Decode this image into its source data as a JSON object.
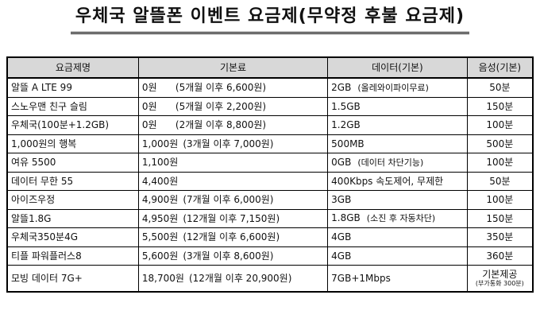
{
  "title": "우체국 알뜰폰 이벤트 요금제(무약정 후불 요금제)",
  "table": {
    "headers": [
      "요금제명",
      "기본료",
      "데이터(기본)",
      "음성(기본)"
    ],
    "rows": [
      {
        "name": "알뜰 A LTE 99",
        "fee": "0원",
        "fee_note": "(5개월 이후 6,600원)",
        "data": "2GB",
        "data_note": "(올레와이파이무료)",
        "voice": "50분"
      },
      {
        "name": "스노우맨 친구 슬림",
        "fee": "0원",
        "fee_note": "(5개월 이후 2,200원)",
        "data": "1.5GB",
        "data_note": "",
        "voice": "150분"
      },
      {
        "name": "우체국(100분+1.2GB)",
        "fee": "0원",
        "fee_note": "(2개월 이후 8,800원)",
        "data": "1.2GB",
        "data_note": "",
        "voice": "100분"
      },
      {
        "name": "1,000원의 행복",
        "fee": "1,000원",
        "fee_note": "(3개월 이후 7,000원)",
        "data": "500MB",
        "data_note": "",
        "voice": "500분"
      },
      {
        "name": "여유 5500",
        "fee": "1,100원",
        "fee_note": "",
        "data": "0GB",
        "data_note": "(데이터 차단기능)",
        "voice": "100분"
      },
      {
        "name": "데이터 무한 55",
        "fee": "4,400원",
        "fee_note": "",
        "data": "400Kbps 속도제어, 무제한",
        "data_note": "",
        "voice": "50분"
      },
      {
        "name": "아이즈우정",
        "fee": "4,900원",
        "fee_note": "(7개월 이후 6,000원)",
        "data": "3GB",
        "data_note": "",
        "voice": "100분"
      },
      {
        "name": "알뜰1.8G",
        "fee": "4,950원",
        "fee_note": "(12개월 이후 7,150원)",
        "data": "1.8GB",
        "data_note": "(소진 후 자동차단)",
        "voice": "150분"
      },
      {
        "name": "우체국350분4G",
        "fee": "5,500원",
        "fee_note": "(12개월 이후 6,600원)",
        "data": "4GB",
        "data_note": "",
        "voice": "350분"
      },
      {
        "name": "티플 파워플러스8",
        "fee": "5,600원",
        "fee_note": "(3개월 이후 8,600원)",
        "data": "4GB",
        "data_note": "",
        "voice": "360분"
      },
      {
        "name": "모빙 데이터 7G+",
        "fee": "18,700원",
        "fee_note": "(12개월 이후 20,900원)",
        "data": "7GB+1Mbps",
        "data_note": "",
        "voice": "기본제공",
        "voice_note": "(부가통화 300분)"
      }
    ]
  }
}
